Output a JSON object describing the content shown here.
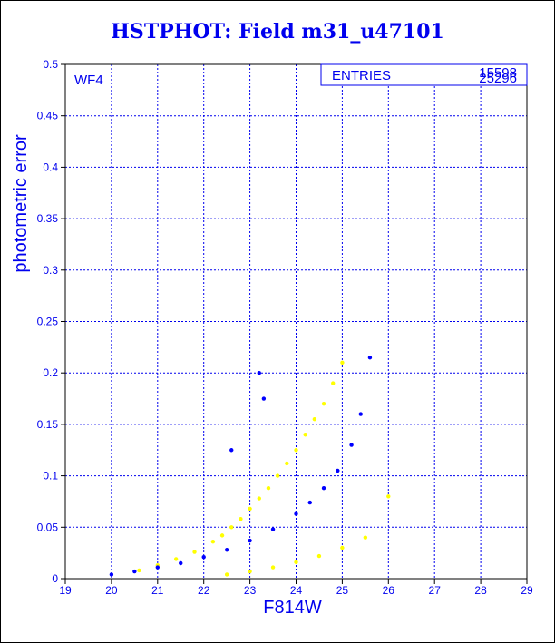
{
  "title": "HSTPHOT: Field m31_u47101",
  "chart_data": {
    "type": "scatter",
    "title": "HSTPHOT: Field m31_u47101",
    "xlabel": "F814W",
    "ylabel": "photometric error",
    "xlim": [
      19,
      29
    ],
    "ylim": [
      0,
      0.5
    ],
    "xticks": [
      "19",
      "20",
      "21",
      "22",
      "23",
      "24",
      "25",
      "26",
      "27",
      "28",
      "29"
    ],
    "yticks": [
      "0",
      "0.05",
      "0.1",
      "0.15",
      "0.2",
      "0.25",
      "0.3",
      "0.35",
      "0.4",
      "0.45",
      "0.5"
    ],
    "grid": true,
    "panel_label": "WF4",
    "stats_box": {
      "label": "ENTRIES",
      "values": [
        "15598",
        "25296"
      ]
    },
    "colors": {
      "series_a": "#0000ff",
      "series_b": "#ffff00",
      "text": "#0000ee",
      "grid": "#0000ee"
    },
    "series": [
      {
        "color": "#ffff00",
        "x": [
          20.6,
          21.0,
          21.4,
          21.8,
          22.2,
          22.4,
          22.6,
          22.8,
          23.0,
          23.2,
          23.4,
          23.6,
          23.8,
          24.0,
          24.2,
          24.4,
          24.6,
          24.8,
          25.0,
          22.5,
          23.0,
          23.5,
          24.0,
          24.5,
          25.0,
          25.5,
          26.0
        ],
        "y": [
          0.008,
          0.013,
          0.019,
          0.026,
          0.036,
          0.042,
          0.05,
          0.058,
          0.068,
          0.078,
          0.088,
          0.1,
          0.112,
          0.125,
          0.14,
          0.155,
          0.17,
          0.19,
          0.21,
          0.004,
          0.007,
          0.011,
          0.016,
          0.022,
          0.03,
          0.04,
          0.08
        ]
      },
      {
        "color": "#0000ff",
        "x": [
          20.0,
          20.5,
          21.0,
          21.5,
          22.0,
          22.5,
          23.0,
          23.5,
          24.0,
          24.3,
          24.6,
          24.9,
          25.2,
          25.4,
          25.6,
          23.2,
          23.3,
          22.6
        ],
        "y": [
          0.004,
          0.007,
          0.011,
          0.015,
          0.021,
          0.028,
          0.037,
          0.048,
          0.063,
          0.074,
          0.088,
          0.105,
          0.13,
          0.16,
          0.215,
          0.2,
          0.175,
          0.125
        ]
      }
    ]
  }
}
